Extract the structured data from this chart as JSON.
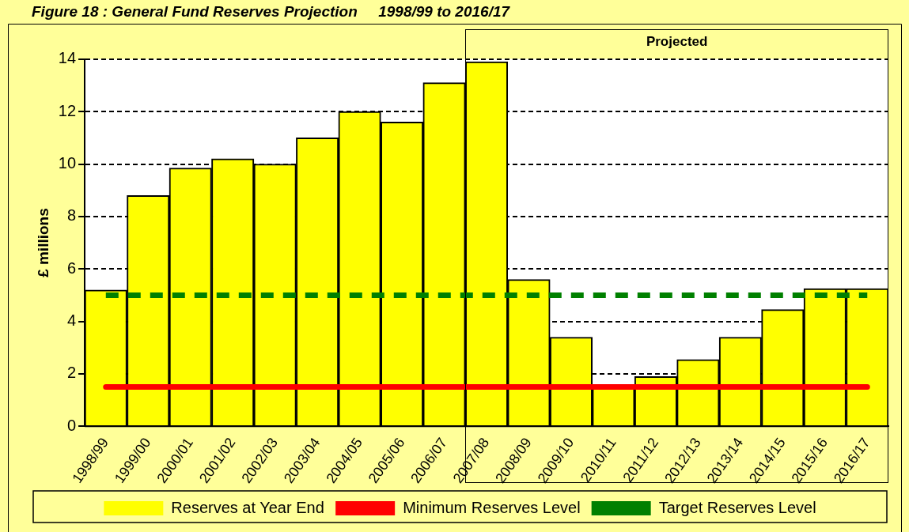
{
  "chart_data": {
    "type": "bar",
    "title": "Figure 18 : General Fund Reserves Projection     1998/99 to 2016/17",
    "ylabel": "£ millions",
    "categories": [
      "1998/99",
      "1999/00",
      "2000/01",
      "2001/02",
      "2002/03",
      "2003/04",
      "2004/05",
      "2005/06",
      "2006/07",
      "2007/08",
      "2008/09",
      "2009/10",
      "2010/11",
      "2011/12",
      "2012/13",
      "2013/14",
      "2014/15",
      "2015/16",
      "2016/17"
    ],
    "series": [
      {
        "name": "Reserves at Year End",
        "color": "#ffff00",
        "values": [
          5.2,
          8.8,
          9.85,
          10.2,
          10.0,
          11.0,
          12.0,
          11.6,
          13.1,
          13.9,
          5.6,
          3.4,
          1.5,
          1.9,
          2.55,
          3.4,
          4.45,
          5.25,
          5.25
        ]
      },
      {
        "name": "Minimum Reserves Level",
        "type": "line",
        "color": "#ff0000",
        "line_style": "solid",
        "values": [
          1.5,
          1.5,
          1.5,
          1.5,
          1.5,
          1.5,
          1.5,
          1.5,
          1.5,
          1.5,
          1.5,
          1.5,
          1.5,
          1.5,
          1.5,
          1.5,
          1.5,
          1.5,
          1.5
        ]
      },
      {
        "name": "Target Reserves Level",
        "type": "line",
        "color": "#008000",
        "line_style": "dashed",
        "values": [
          5,
          5,
          5,
          5,
          5,
          5,
          5,
          5,
          5,
          5,
          5,
          5,
          5,
          5,
          5,
          5,
          5,
          5,
          5
        ]
      }
    ],
    "ylim": [
      0,
      14
    ],
    "yticks": [
      0,
      2,
      4,
      6,
      8,
      10,
      12,
      14
    ],
    "grid": "y",
    "legend": "bottom",
    "marker": "none",
    "bands": [
      {
        "axis": "x",
        "from": "2007/08",
        "to": "2016/17",
        "label": "Projected",
        "color": "#ffffff"
      }
    ]
  }
}
